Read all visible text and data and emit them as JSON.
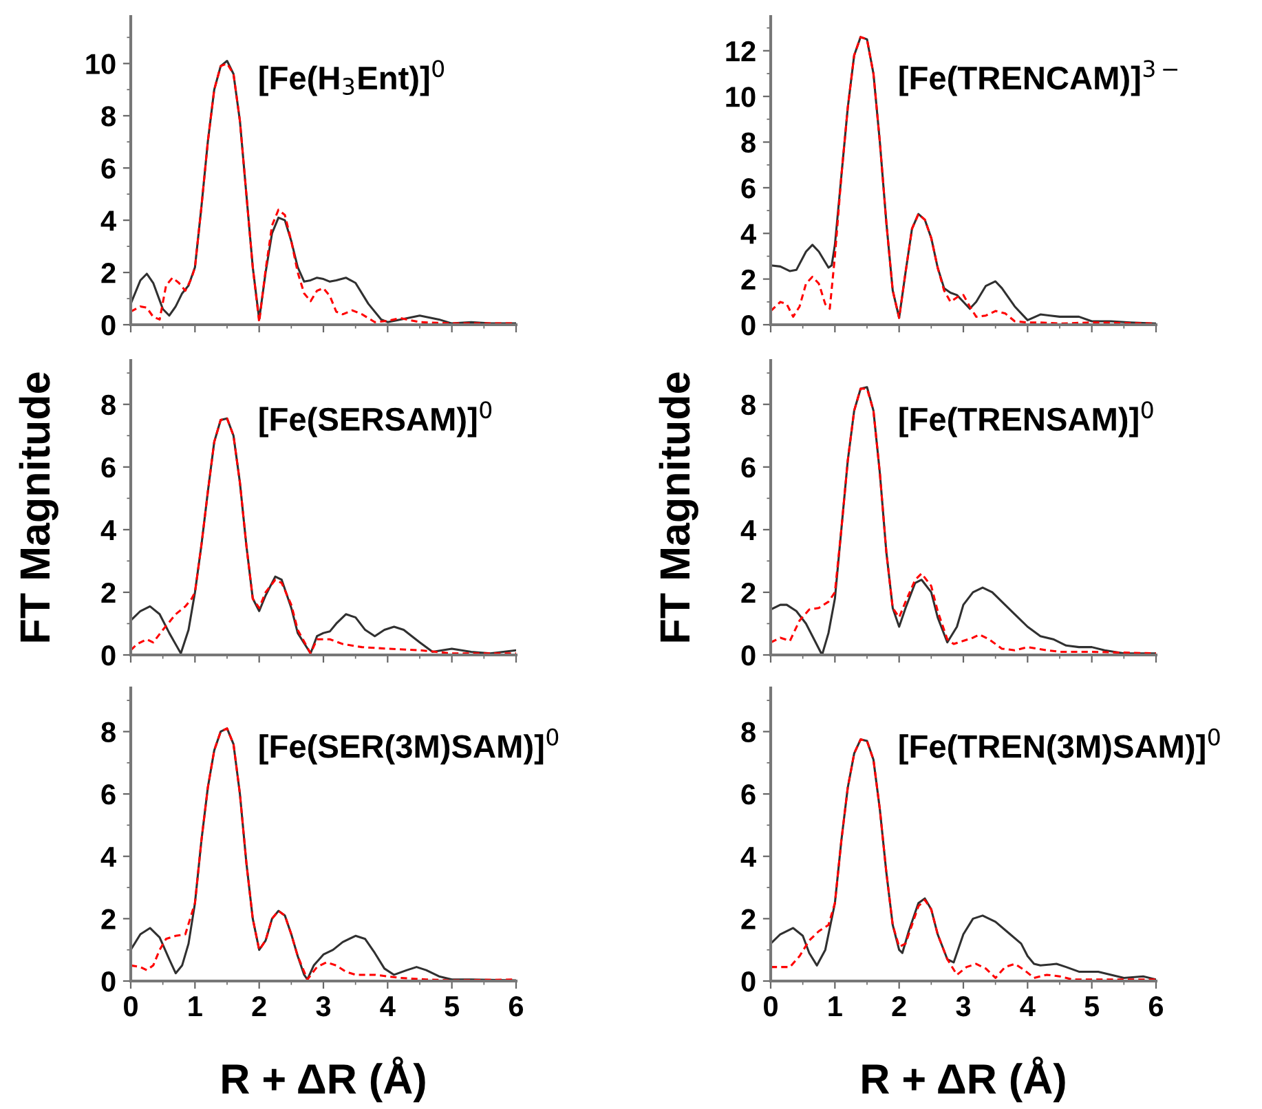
{
  "chart_data": [
    {
      "type": "line",
      "annotations": [
        "[Fe(H$_{3}$Ent)]$^{0}$"
      ],
      "xlim": [
        0,
        6
      ],
      "xticks": [
        0,
        1,
        2,
        3,
        4,
        5,
        6
      ],
      "ylim": [
        0,
        11.8
      ],
      "yticks": [
        0,
        2,
        4,
        6,
        8,
        10
      ],
      "tick_labels": "y",
      "series": [
        {
          "color": "#303030",
          "line_style": "solid",
          "x": [
            0,
            0.15,
            0.25,
            0.35,
            0.5,
            0.6,
            0.7,
            0.8,
            0.9,
            1.0,
            1.1,
            1.2,
            1.3,
            1.4,
            1.5,
            1.6,
            1.7,
            1.8,
            1.9,
            2.0,
            2.1,
            2.2,
            2.3,
            2.4,
            2.5,
            2.6,
            2.7,
            2.8,
            2.9,
            3.0,
            3.1,
            3.2,
            3.35,
            3.5,
            3.7,
            3.9,
            4.0,
            4.2,
            4.5,
            4.8,
            5.0,
            5.3,
            5.6,
            6
          ],
          "values": [
            0.8,
            1.7,
            1.95,
            1.6,
            0.6,
            0.35,
            0.7,
            1.2,
            1.5,
            2.2,
            4.5,
            7,
            9,
            9.9,
            10.1,
            9.6,
            7.8,
            5,
            2.2,
            0.2,
            2.0,
            3.5,
            4.1,
            4.0,
            3.2,
            2.2,
            1.65,
            1.7,
            1.8,
            1.75,
            1.65,
            1.7,
            1.8,
            1.6,
            0.8,
            0.2,
            0.1,
            0.2,
            0.35,
            0.2,
            0.05,
            0.1,
            0.05,
            0.05
          ]
        },
        {
          "color": "#ff0000",
          "line_style": "dashed",
          "x": [
            0,
            0.15,
            0.25,
            0.35,
            0.45,
            0.55,
            0.65,
            0.75,
            0.85,
            0.95,
            1.0,
            1.1,
            1.2,
            1.3,
            1.4,
            1.5,
            1.6,
            1.7,
            1.8,
            1.9,
            2.0,
            2.1,
            2.2,
            2.3,
            2.4,
            2.5,
            2.6,
            2.7,
            2.8,
            2.9,
            3.0,
            3.1,
            3.2,
            3.3,
            3.45,
            3.6,
            3.8,
            4.0,
            4.2,
            4.5,
            5.0,
            6
          ],
          "values": [
            0.5,
            0.7,
            0.65,
            0.3,
            0.2,
            1.5,
            1.8,
            1.6,
            1.3,
            1.8,
            2.2,
            4.5,
            7,
            9,
            9.9,
            10.0,
            9.6,
            7.8,
            5,
            2.2,
            0.1,
            2.1,
            3.8,
            4.4,
            4.2,
            3.2,
            2.0,
            1.2,
            0.9,
            1.3,
            1.4,
            1.1,
            0.5,
            0.4,
            0.55,
            0.4,
            0.1,
            0.15,
            0.25,
            0.1,
            0.05,
            0.05
          ]
        }
      ]
    },
    {
      "type": "line",
      "annotations": [
        "[Fe(TRENCAM)]$^{3−}$"
      ],
      "xlim": [
        0,
        6
      ],
      "xticks": [
        0,
        1,
        2,
        3,
        4,
        5,
        6
      ],
      "ylim": [
        0,
        13.5
      ],
      "yticks": [
        0,
        2,
        4,
        6,
        8,
        10,
        12
      ],
      "tick_labels": "y",
      "series": [
        {
          "color": "#303030",
          "line_style": "solid",
          "x": [
            0,
            0.15,
            0.3,
            0.4,
            0.55,
            0.65,
            0.75,
            0.9,
            0.95,
            1.0,
            1.1,
            1.2,
            1.3,
            1.4,
            1.5,
            1.6,
            1.7,
            1.8,
            1.9,
            2.0,
            2.1,
            2.2,
            2.3,
            2.4,
            2.5,
            2.6,
            2.7,
            2.8,
            2.9,
            3.0,
            3.1,
            3.2,
            3.35,
            3.5,
            3.6,
            3.8,
            4.0,
            4.2,
            4.5,
            4.8,
            5.0,
            5.3,
            5.6,
            6
          ],
          "values": [
            2.6,
            2.55,
            2.35,
            2.4,
            3.2,
            3.5,
            3.2,
            2.5,
            2.6,
            3.5,
            6.5,
            9.5,
            11.8,
            12.6,
            12.5,
            11,
            8,
            4.5,
            1.5,
            0.3,
            2.3,
            4.2,
            4.85,
            4.6,
            3.8,
            2.5,
            1.6,
            1.4,
            1.3,
            1.0,
            0.7,
            1.0,
            1.7,
            1.9,
            1.6,
            0.8,
            0.2,
            0.45,
            0.35,
            0.35,
            0.15,
            0.15,
            0.1,
            0.05
          ]
        },
        {
          "color": "#ff0000",
          "line_style": "dashed",
          "x": [
            0,
            0.15,
            0.25,
            0.35,
            0.45,
            0.55,
            0.65,
            0.75,
            0.85,
            0.92,
            1.0,
            1.1,
            1.2,
            1.3,
            1.4,
            1.5,
            1.6,
            1.7,
            1.8,
            1.9,
            2.0,
            2.1,
            2.2,
            2.3,
            2.4,
            2.5,
            2.6,
            2.7,
            2.8,
            2.9,
            3.0,
            3.1,
            3.2,
            3.35,
            3.5,
            3.65,
            3.8,
            4.0,
            4.2,
            4.5,
            5.0,
            6
          ],
          "values": [
            0.6,
            1.0,
            0.9,
            0.35,
            0.8,
            1.8,
            2.1,
            1.8,
            0.9,
            0.7,
            3.0,
            6.5,
            9.5,
            11.8,
            12.6,
            12.5,
            11,
            8,
            4.5,
            1.5,
            0.3,
            2.3,
            4.2,
            4.85,
            4.6,
            3.8,
            2.5,
            1.5,
            1.0,
            1.2,
            1.3,
            0.8,
            0.35,
            0.4,
            0.6,
            0.5,
            0.15,
            0.1,
            0.1,
            0.05,
            0.1,
            0.05
          ]
        }
      ]
    },
    {
      "type": "line",
      "annotations": [
        "[Fe(SERSAM)]$^{0}$"
      ],
      "xlim": [
        0,
        6
      ],
      "xticks": [
        0,
        1,
        2,
        3,
        4,
        5,
        6
      ],
      "ylim": [
        0,
        9.4
      ],
      "yticks": [
        0,
        2,
        4,
        6,
        8
      ],
      "tick_labels": "y",
      "ylabel": "FT Magnitude",
      "series": [
        {
          "color": "#303030",
          "line_style": "solid",
          "x": [
            0,
            0.15,
            0.3,
            0.45,
            0.6,
            0.78,
            0.9,
            1.0,
            1.1,
            1.2,
            1.3,
            1.4,
            1.5,
            1.6,
            1.7,
            1.8,
            1.9,
            2.0,
            2.1,
            2.25,
            2.35,
            2.5,
            2.6,
            2.8,
            2.9,
            3.0,
            3.1,
            3.2,
            3.35,
            3.5,
            3.65,
            3.8,
            3.95,
            4.1,
            4.25,
            4.5,
            4.7,
            5.0,
            5.3,
            5.6,
            6
          ],
          "values": [
            1.1,
            1.4,
            1.55,
            1.3,
            0.7,
            0.05,
            0.8,
            2.0,
            3.5,
            5.2,
            6.8,
            7.5,
            7.55,
            7.0,
            5.5,
            3.5,
            1.8,
            1.4,
            1.9,
            2.5,
            2.4,
            1.5,
            0.7,
            0.05,
            0.6,
            0.7,
            0.75,
            1.0,
            1.3,
            1.2,
            0.8,
            0.6,
            0.8,
            0.9,
            0.8,
            0.4,
            0.1,
            0.2,
            0.1,
            0.05,
            0.15
          ]
        },
        {
          "color": "#ff0000",
          "line_style": "dashed",
          "x": [
            0,
            0.1,
            0.25,
            0.35,
            0.5,
            0.7,
            0.85,
            0.95,
            1.0,
            1.1,
            1.2,
            1.3,
            1.4,
            1.5,
            1.6,
            1.7,
            1.8,
            1.9,
            2.0,
            2.1,
            2.25,
            2.35,
            2.5,
            2.6,
            2.8,
            2.9,
            3.1,
            3.3,
            3.6,
            4.0,
            4.5,
            5.0,
            6
          ],
          "values": [
            0.15,
            0.35,
            0.5,
            0.4,
            0.8,
            1.3,
            1.55,
            1.8,
            2.0,
            3.5,
            5.2,
            6.8,
            7.5,
            7.55,
            7.0,
            5.5,
            3.5,
            1.8,
            1.5,
            2.0,
            2.4,
            2.3,
            1.6,
            0.8,
            0.05,
            0.5,
            0.5,
            0.35,
            0.25,
            0.2,
            0.15,
            0.05,
            0.05
          ]
        }
      ]
    },
    {
      "type": "line",
      "annotations": [
        "[Fe(TRENSAM)]$^{0}$"
      ],
      "xlim": [
        0,
        6
      ],
      "xticks": [
        0,
        1,
        2,
        3,
        4,
        5,
        6
      ],
      "ylim": [
        0,
        9.4
      ],
      "yticks": [
        0,
        2,
        4,
        6,
        8
      ],
      "tick_labels": "y",
      "ylabel": "FT Magnitude",
      "series": [
        {
          "color": "#303030",
          "line_style": "solid",
          "x": [
            0,
            0.15,
            0.25,
            0.4,
            0.55,
            0.7,
            0.8,
            0.9,
            1.0,
            1.1,
            1.2,
            1.3,
            1.4,
            1.5,
            1.6,
            1.7,
            1.8,
            1.9,
            2.0,
            2.1,
            2.25,
            2.35,
            2.5,
            2.6,
            2.75,
            2.9,
            3.0,
            3.15,
            3.3,
            3.45,
            3.6,
            3.8,
            4.0,
            4.2,
            4.4,
            4.6,
            4.8,
            5.0,
            5.2,
            5.5,
            6
          ],
          "values": [
            1.45,
            1.6,
            1.6,
            1.4,
            1.0,
            0.4,
            0.0,
            0.7,
            1.8,
            4,
            6.2,
            7.8,
            8.5,
            8.55,
            7.8,
            5.8,
            3.3,
            1.5,
            0.9,
            1.5,
            2.3,
            2.4,
            2.0,
            1.2,
            0.4,
            0.9,
            1.6,
            2.0,
            2.15,
            2.0,
            1.7,
            1.3,
            0.9,
            0.6,
            0.5,
            0.3,
            0.25,
            0.25,
            0.15,
            0.05,
            0.05
          ]
        },
        {
          "color": "#ff0000",
          "line_style": "dashed",
          "x": [
            0,
            0.15,
            0.3,
            0.45,
            0.6,
            0.75,
            0.9,
            1.0,
            1.1,
            1.2,
            1.3,
            1.4,
            1.5,
            1.6,
            1.7,
            1.8,
            1.9,
            2.0,
            2.1,
            2.25,
            2.35,
            2.5,
            2.6,
            2.75,
            2.85,
            3.0,
            3.15,
            3.25,
            3.4,
            3.6,
            3.8,
            4.0,
            4.3,
            4.5,
            5.0,
            6
          ],
          "values": [
            0.4,
            0.55,
            0.45,
            1.1,
            1.45,
            1.5,
            1.7,
            2.0,
            4,
            6.2,
            7.8,
            8.5,
            8.5,
            7.8,
            5.8,
            3.3,
            1.5,
            1.2,
            1.7,
            2.4,
            2.6,
            2.2,
            1.4,
            0.5,
            0.35,
            0.45,
            0.55,
            0.65,
            0.5,
            0.2,
            0.15,
            0.25,
            0.15,
            0.1,
            0.1,
            0.05
          ]
        }
      ]
    },
    {
      "type": "line",
      "annotations": [
        "[Fe(SER(3M)SAM)]$^{0}$"
      ],
      "xlim": [
        0,
        6
      ],
      "xticks": [
        0,
        1,
        2,
        3,
        4,
        5,
        6
      ],
      "ylim": [
        0,
        9.4
      ],
      "yticks": [
        0,
        2,
        4,
        6,
        8
      ],
      "xlabel": "R + ΔR (Å)",
      "series": [
        {
          "color": "#303030",
          "line_style": "solid",
          "x": [
            0,
            0.15,
            0.3,
            0.45,
            0.6,
            0.7,
            0.8,
            0.9,
            1.0,
            1.1,
            1.2,
            1.3,
            1.4,
            1.5,
            1.6,
            1.7,
            1.8,
            1.9,
            2.0,
            2.1,
            2.2,
            2.3,
            2.4,
            2.5,
            2.6,
            2.7,
            2.75,
            2.85,
            3.0,
            3.15,
            3.3,
            3.5,
            3.65,
            3.8,
            3.95,
            4.1,
            4.3,
            4.45,
            4.6,
            4.8,
            5.0,
            5.3,
            6
          ],
          "values": [
            1.0,
            1.5,
            1.7,
            1.4,
            0.7,
            0.25,
            0.5,
            1.2,
            2.5,
            4.5,
            6.2,
            7.4,
            8.0,
            8.1,
            7.6,
            6.0,
            3.8,
            2.0,
            1.0,
            1.3,
            2.0,
            2.25,
            2.1,
            1.5,
            0.8,
            0.2,
            0.05,
            0.5,
            0.85,
            1.0,
            1.25,
            1.45,
            1.35,
            0.9,
            0.4,
            0.2,
            0.35,
            0.45,
            0.35,
            0.15,
            0.05,
            0.05,
            0.02
          ]
        },
        {
          "color": "#ff0000",
          "line_style": "dashed",
          "x": [
            0,
            0.15,
            0.25,
            0.35,
            0.45,
            0.55,
            0.7,
            0.85,
            1.0,
            1.1,
            1.2,
            1.3,
            1.4,
            1.5,
            1.6,
            1.7,
            1.8,
            1.9,
            2.0,
            2.1,
            2.2,
            2.3,
            2.4,
            2.5,
            2.6,
            2.75,
            2.9,
            3.05,
            3.2,
            3.35,
            3.5,
            3.8,
            4.2,
            4.6,
            5.0,
            6
          ],
          "values": [
            0.5,
            0.45,
            0.35,
            0.5,
            1.0,
            1.35,
            1.45,
            1.5,
            2.5,
            4.5,
            6.2,
            7.4,
            8.0,
            8.1,
            7.6,
            6.0,
            3.8,
            2.0,
            1.0,
            1.3,
            2.0,
            2.25,
            2.1,
            1.5,
            0.8,
            0.05,
            0.45,
            0.6,
            0.5,
            0.3,
            0.2,
            0.2,
            0.1,
            0.05,
            0.02,
            0.05
          ]
        }
      ]
    },
    {
      "type": "line",
      "annotations": [
        "[Fe(TREN(3M)SAM)]$^{0}$"
      ],
      "xlim": [
        0,
        6
      ],
      "xticks": [
        0,
        1,
        2,
        3,
        4,
        5,
        6
      ],
      "ylim": [
        0,
        9.4
      ],
      "yticks": [
        0,
        2,
        4,
        6,
        8
      ],
      "xlabel": "R + ΔR (Å)",
      "series": [
        {
          "color": "#303030",
          "line_style": "solid",
          "x": [
            0,
            0.15,
            0.35,
            0.5,
            0.6,
            0.72,
            0.85,
            1.0,
            1.1,
            1.2,
            1.3,
            1.4,
            1.5,
            1.6,
            1.7,
            1.8,
            1.9,
            2.0,
            2.05,
            2.15,
            2.3,
            2.4,
            2.5,
            2.6,
            2.75,
            2.85,
            3.0,
            3.15,
            3.3,
            3.5,
            3.7,
            3.9,
            4.0,
            4.1,
            4.2,
            4.45,
            4.6,
            4.8,
            5.1,
            5.3,
            5.5,
            5.8,
            6
          ],
          "values": [
            1.2,
            1.5,
            1.7,
            1.45,
            0.9,
            0.5,
            1.0,
            2.5,
            4.5,
            6.2,
            7.3,
            7.75,
            7.7,
            7.1,
            5.5,
            3.5,
            1.8,
            1.0,
            0.9,
            1.6,
            2.5,
            2.65,
            2.3,
            1.5,
            0.7,
            0.6,
            1.5,
            2.0,
            2.1,
            1.9,
            1.55,
            1.2,
            0.8,
            0.55,
            0.5,
            0.55,
            0.45,
            0.3,
            0.3,
            0.2,
            0.1,
            0.15,
            0.05
          ]
        },
        {
          "color": "#ff0000",
          "line_style": "dashed",
          "x": [
            0,
            0.3,
            0.45,
            0.6,
            0.75,
            0.9,
            1.0,
            1.1,
            1.2,
            1.3,
            1.4,
            1.5,
            1.6,
            1.7,
            1.8,
            1.9,
            2.0,
            2.1,
            2.3,
            2.4,
            2.5,
            2.6,
            2.75,
            2.9,
            3.05,
            3.2,
            3.35,
            3.5,
            3.65,
            3.8,
            3.95,
            4.1,
            4.3,
            4.5,
            4.7,
            5.0,
            6
          ],
          "values": [
            0.45,
            0.45,
            0.8,
            1.3,
            1.6,
            1.8,
            2.5,
            4.5,
            6.2,
            7.3,
            7.75,
            7.7,
            7.1,
            5.5,
            3.5,
            1.8,
            1.1,
            1.2,
            2.4,
            2.6,
            2.3,
            1.5,
            0.7,
            0.2,
            0.45,
            0.55,
            0.4,
            0.1,
            0.45,
            0.55,
            0.35,
            0.1,
            0.2,
            0.15,
            0.05,
            0.05,
            0.05
          ]
        }
      ]
    }
  ]
}
